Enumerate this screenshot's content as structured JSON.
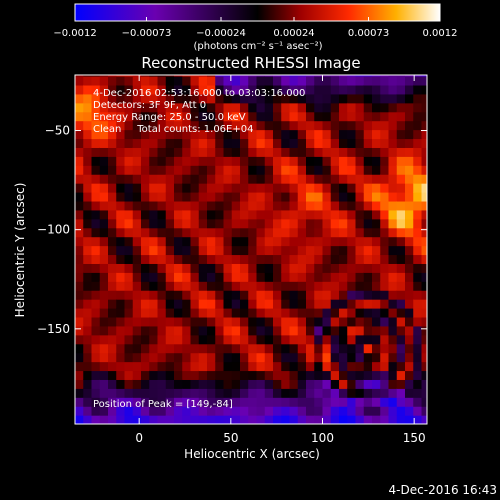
{
  "chart_data": {
    "type": "heatmap",
    "title": "Reconstructed RHESSI Image",
    "xlabel": "Heliocentric X (arcsec)",
    "ylabel": "Heliocentric Y (arcsec)",
    "xlim": [
      -35,
      157
    ],
    "ylim": [
      -198,
      -22
    ],
    "x_ticks": [
      0,
      50,
      100,
      150
    ],
    "x_tick_labels": [
      "0",
      "50",
      "100",
      "150"
    ],
    "y_ticks": [
      -50,
      -100,
      -150
    ],
    "y_tick_labels": [
      "−50",
      "−100",
      "−150"
    ],
    "colorbar": {
      "range": [
        -0.0012,
        0.0012
      ],
      "ticks": [
        -0.0012,
        -0.00073,
        -0.00024,
        0.00024,
        0.00073,
        0.0012
      ],
      "tick_labels": [
        "−0.0012",
        "−0.00073",
        "−0.00024",
        "0.00024",
        "0.00073",
        "0.0012"
      ],
      "label": "(photons cm⁻² s⁻¹ asec⁻²)"
    },
    "annotations": [
      "4-Dec-2016 02:53:16.000 to 03:03:16.000",
      "Detectors: 3F 9F, Att 0",
      "Energy Range: 25.0 - 50.0 keV",
      "Clean     Total counts: 1.06E+04",
      "Position of Peak = [149,-84]"
    ],
    "peak": [
      149,
      -84
    ],
    "timestamp": "4-Dec-2016 16:43",
    "colormap": [
      "#0000ff",
      "#6a00b0",
      "#000000",
      "#800000",
      "#ff2a00",
      "#ffb000",
      "#ffffff"
    ]
  }
}
